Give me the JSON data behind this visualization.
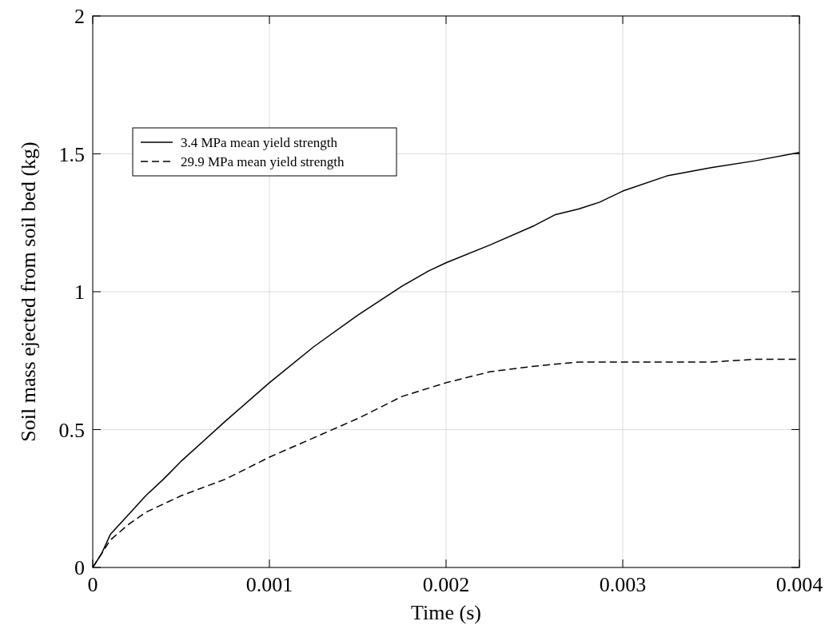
{
  "chart_data": {
    "type": "line",
    "xlabel": "Time (s)",
    "ylabel": "Soil mass ejected from soil bed (kg)",
    "xlim": [
      0,
      0.004
    ],
    "xticks": [
      0,
      0.001,
      0.002,
      0.003,
      0.004
    ],
    "ylim": [
      0,
      2
    ],
    "yticks": [
      0,
      0.5,
      1,
      1.5,
      2
    ],
    "grid": true,
    "legend": "top left",
    "series": [
      {
        "name": "3.4 MPa mean yield strength",
        "color": "#000000",
        "line_style": "solid",
        "x": [
          0,
          5e-05,
          0.0001,
          0.0002,
          0.0003,
          0.0004,
          0.0005,
          0.00075,
          0.001,
          0.00125,
          0.0015,
          0.00175,
          0.0019,
          0.002,
          0.00225,
          0.0025,
          0.00262,
          0.00275,
          0.00287,
          0.003,
          0.00325,
          0.0035,
          0.00375,
          0.004
        ],
        "values": [
          0,
          0.05,
          0.12,
          0.19,
          0.26,
          0.32,
          0.385,
          0.53,
          0.67,
          0.8,
          0.915,
          1.02,
          1.075,
          1.105,
          1.17,
          1.24,
          1.28,
          1.3,
          1.325,
          1.365,
          1.42,
          1.45,
          1.475,
          1.505
        ]
      },
      {
        "name": "29.9 MPa mean yield strength",
        "color": "#000000",
        "line_style": "dashed",
        "x": [
          0,
          0.0001,
          0.0002,
          0.0003,
          0.0005,
          0.00075,
          0.001,
          0.00125,
          0.0015,
          0.00175,
          0.002,
          0.00225,
          0.0025,
          0.00275,
          0.003,
          0.00325,
          0.0035,
          0.00375,
          0.004
        ],
        "values": [
          0,
          0.1,
          0.155,
          0.2,
          0.26,
          0.32,
          0.4,
          0.47,
          0.54,
          0.62,
          0.67,
          0.71,
          0.73,
          0.745,
          0.745,
          0.745,
          0.745,
          0.755,
          0.755
        ]
      }
    ]
  }
}
